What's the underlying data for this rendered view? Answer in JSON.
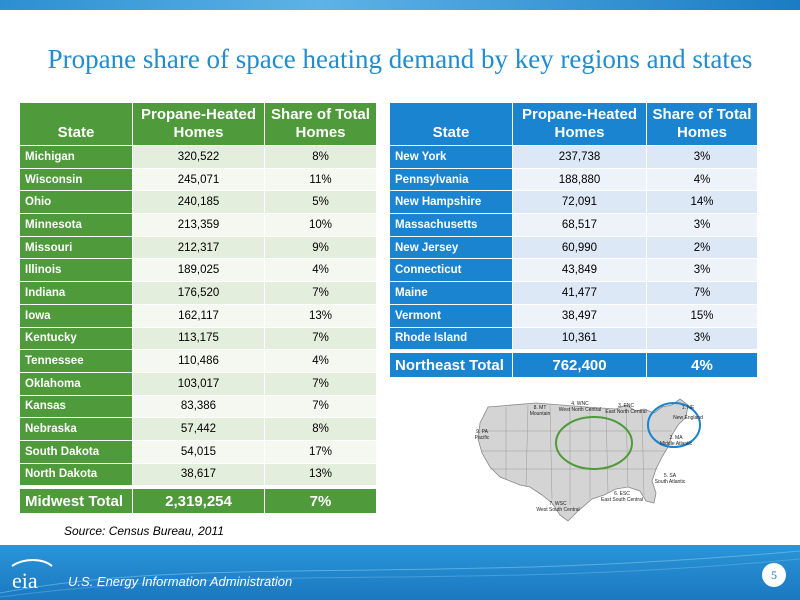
{
  "title": "Propane share of space heating demand by key regions and states",
  "headers": {
    "state": "State",
    "homes": "Propane-Heated Homes",
    "share": "Share of Total Homes"
  },
  "midwest": {
    "rows": [
      {
        "state": "Michigan",
        "homes": "320,522",
        "share": "8%"
      },
      {
        "state": "Wisconsin",
        "homes": "245,071",
        "share": "11%"
      },
      {
        "state": "Ohio",
        "homes": "240,185",
        "share": "5%"
      },
      {
        "state": "Minnesota",
        "homes": "213,359",
        "share": "10%"
      },
      {
        "state": "Missouri",
        "homes": "212,317",
        "share": "9%"
      },
      {
        "state": "Illinois",
        "homes": "189,025",
        "share": "4%"
      },
      {
        "state": "Indiana",
        "homes": "176,520",
        "share": "7%"
      },
      {
        "state": "Iowa",
        "homes": "162,117",
        "share": "13%"
      },
      {
        "state": "Kentucky",
        "homes": "113,175",
        "share": "7%"
      },
      {
        "state": "Tennessee",
        "homes": "110,486",
        "share": "4%"
      },
      {
        "state": "Oklahoma",
        "homes": "103,017",
        "share": "7%"
      },
      {
        "state": "Kansas",
        "homes": "83,386",
        "share": "7%"
      },
      {
        "state": "Nebraska",
        "homes": "57,442",
        "share": "8%"
      },
      {
        "state": "South Dakota",
        "homes": "54,015",
        "share": "17%"
      },
      {
        "state": "North Dakota",
        "homes": "38,617",
        "share": "13%"
      }
    ],
    "total": {
      "state": "Midwest Total",
      "homes": "2,319,254",
      "share": "7%"
    }
  },
  "northeast": {
    "rows": [
      {
        "state": "New York",
        "homes": "237,738",
        "share": "3%"
      },
      {
        "state": "Pennsylvania",
        "homes": "188,880",
        "share": "4%"
      },
      {
        "state": "New Hampshire",
        "homes": "72,091",
        "share": "14%"
      },
      {
        "state": "Massachusetts",
        "homes": "68,517",
        "share": "3%"
      },
      {
        "state": "New Jersey",
        "homes": "60,990",
        "share": "2%"
      },
      {
        "state": "Connecticut",
        "homes": "43,849",
        "share": "3%"
      },
      {
        "state": "Maine",
        "homes": "41,477",
        "share": "7%"
      },
      {
        "state": "Vermont",
        "homes": "38,497",
        "share": "15%"
      },
      {
        "state": "Rhode Island",
        "homes": "10,361",
        "share": "3%"
      }
    ],
    "total": {
      "state": "Northeast Total",
      "homes": "762,400",
      "share": "4%"
    }
  },
  "map_labels": {
    "mt": "8. MT",
    "mt_name": "Mountain",
    "wnc": "4. WNC",
    "wnc_name": "West North Central",
    "enc": "3. ENC",
    "enc_name": "East North Central",
    "ne": "1. NE",
    "ne_name": "New England",
    "pac": "9. PA",
    "pac_name": "Pacific",
    "ma": "2. MA",
    "ma_name": "Middle Atlantic",
    "sa": "5. SA",
    "sa_name": "South Atlantic",
    "esc": "6. ESC",
    "esc_name": "East South Central",
    "wsc": "7. WSC",
    "wsc_name": "West South Central"
  },
  "source": "Source: Census Bureau, 2011",
  "footer": {
    "agency": "U.S. Energy Information Administration",
    "logo_text": "eia",
    "page": "5"
  },
  "colors": {
    "midwest": "#4f9a3b",
    "northeast": "#1a84d0",
    "title": "#1f8dcf"
  }
}
